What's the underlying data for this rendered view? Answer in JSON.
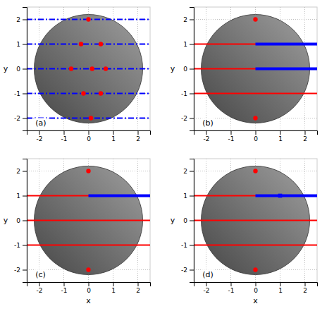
{
  "chart_data": [
    {
      "type": "scatter",
      "annotations": [
        "(a)"
      ],
      "y_label": "y",
      "xlim": [
        -2.5,
        2.5
      ],
      "ylim": [
        -2.5,
        2.5
      ],
      "xticks": [
        -2,
        -1,
        0,
        1,
        2
      ],
      "yticks": [
        -2,
        -1,
        0,
        1,
        2
      ],
      "grid": true,
      "circle": {
        "center": [
          0.0,
          0.0
        ],
        "radius": 2.2
      },
      "series": [
        {
          "type": "hline",
          "color": "blue",
          "line_style": "dashdot",
          "values": [
            2.0,
            1.0,
            0.0,
            -1.0,
            -2.0
          ]
        },
        {
          "type": "scatter",
          "color": "red",
          "marker": "circle",
          "x": [
            0.0,
            -0.3,
            0.5,
            -0.7,
            0.15,
            0.7,
            -0.2,
            0.5,
            0.1
          ],
          "values": [
            2.0,
            1.0,
            1.0,
            0.0,
            0.0,
            0.0,
            -1.0,
            -1.0,
            -2.0
          ]
        }
      ]
    },
    {
      "type": "scatter",
      "annotations": [
        "(b)"
      ],
      "y_label": "y",
      "xlim": [
        -2.5,
        2.5
      ],
      "ylim": [
        -2.5,
        2.5
      ],
      "xticks": [
        -2,
        -1,
        0,
        1,
        2
      ],
      "yticks": [
        -2,
        -1,
        0,
        1,
        2
      ],
      "grid": true,
      "circle": {
        "center": [
          0.0,
          0.0
        ],
        "radius": 2.2
      },
      "series": [
        {
          "type": "hline",
          "color": "red",
          "line_style": "solid",
          "values": [
            1.0,
            0.0,
            -1.0
          ]
        },
        {
          "type": "line",
          "color": "blue",
          "line_style": "solid",
          "x": [
            0.0,
            2.5
          ],
          "values": [
            1.0,
            1.0
          ]
        },
        {
          "type": "line",
          "color": "blue",
          "line_style": "solid",
          "x": [
            0.0,
            2.5
          ],
          "values": [
            0.0,
            0.0
          ]
        },
        {
          "type": "scatter",
          "color": "red",
          "marker": "circle",
          "x": [
            0.0,
            0.0
          ],
          "values": [
            2.0,
            -2.0
          ]
        }
      ]
    },
    {
      "type": "scatter",
      "annotations": [
        "(c)"
      ],
      "x_label": "x",
      "y_label": "y",
      "xlim": [
        -2.5,
        2.5
      ],
      "ylim": [
        -2.5,
        2.5
      ],
      "xticks": [
        -2,
        -1,
        0,
        1,
        2
      ],
      "yticks": [
        -2,
        -1,
        0,
        1,
        2
      ],
      "grid": true,
      "circle": {
        "center": [
          0.0,
          0.0
        ],
        "radius": 2.2
      },
      "series": [
        {
          "type": "hline",
          "color": "red",
          "line_style": "solid",
          "values": [
            1.0,
            0.0,
            -1.0
          ]
        },
        {
          "type": "line",
          "color": "blue",
          "line_style": "solid",
          "x": [
            0.0,
            2.5
          ],
          "values": [
            1.0,
            1.0
          ]
        },
        {
          "type": "scatter",
          "color": "red",
          "marker": "circle",
          "x": [
            0.0,
            0.0
          ],
          "values": [
            2.0,
            -2.0
          ]
        }
      ]
    },
    {
      "type": "scatter",
      "annotations": [
        "(d)"
      ],
      "x_label": "x",
      "y_label": "y",
      "xlim": [
        -2.5,
        2.5
      ],
      "ylim": [
        -2.5,
        2.5
      ],
      "xticks": [
        -2,
        -1,
        0,
        1,
        2
      ],
      "yticks": [
        -2,
        -1,
        0,
        1,
        2
      ],
      "grid": true,
      "circle": {
        "center": [
          0.0,
          0.0
        ],
        "radius": 2.2
      },
      "series": [
        {
          "type": "hline",
          "color": "red",
          "line_style": "solid",
          "values": [
            1.0,
            0.0,
            -1.0
          ]
        },
        {
          "type": "line",
          "color": "blue",
          "line_style": "solid",
          "x": [
            0.0,
            2.5
          ],
          "values": [
            1.0,
            1.0
          ]
        },
        {
          "type": "scatter",
          "color": "red",
          "marker": "circle",
          "x": [
            0.0,
            0.0
          ],
          "values": [
            2.0,
            -2.0
          ]
        },
        {
          "type": "scatter",
          "color": "blue",
          "marker": "square",
          "x": [
            1.0
          ],
          "values": [
            1.0
          ]
        }
      ]
    }
  ]
}
